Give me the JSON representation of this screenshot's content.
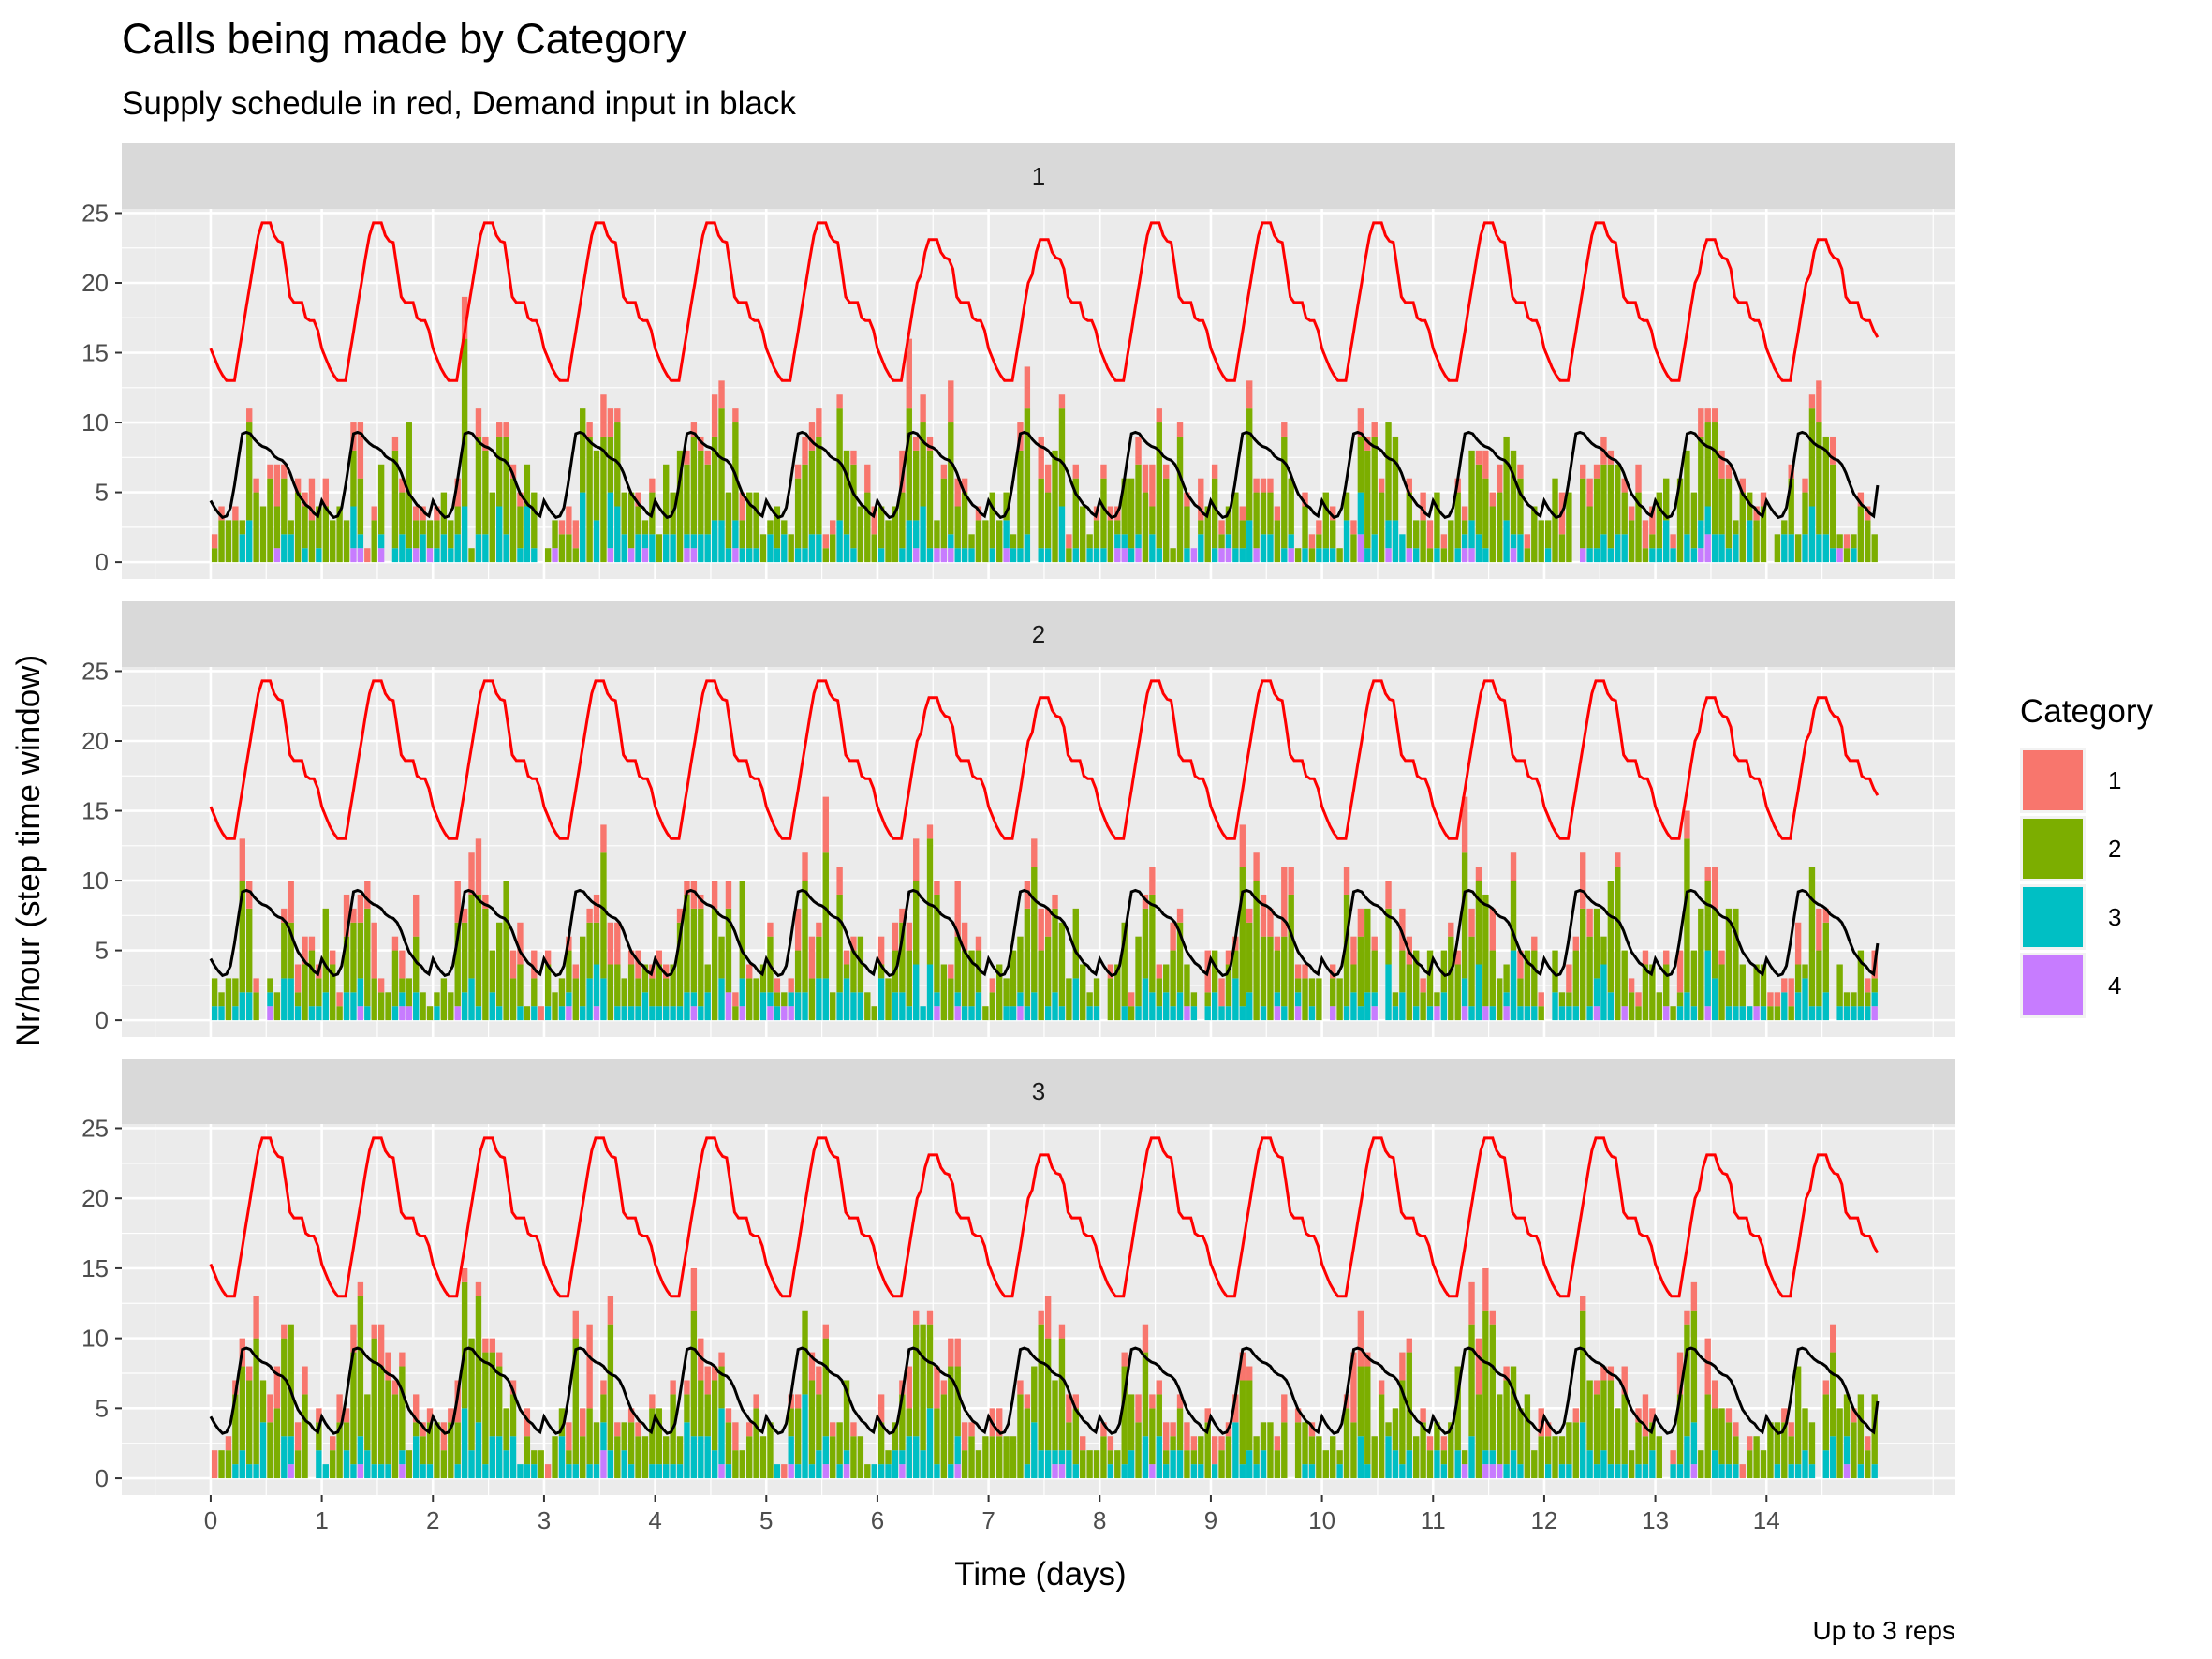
{
  "chart_data": {
    "type": "bar",
    "title": "Calls being made by Category",
    "subtitle": "Supply schedule in red, Demand input in black",
    "xlabel": "Time (days)",
    "ylabel": "Nr/hour (step time window)",
    "caption": "Up to 3 reps",
    "xlim": [
      -0.8,
      15.7
    ],
    "ylim": [
      -1.2,
      25.3
    ],
    "xticks": [
      0,
      1,
      2,
      3,
      4,
      5,
      6,
      7,
      8,
      9,
      10,
      11,
      12,
      13,
      14
    ],
    "yticks": [
      0,
      5,
      10,
      15,
      20,
      25
    ],
    "grid": true,
    "stacked": true,
    "legend": {
      "title": "Category",
      "position": "right",
      "entries": [
        {
          "label": "1",
          "color": "#F8766D"
        },
        {
          "label": "2",
          "color": "#7CAE00"
        },
        {
          "label": "3",
          "color": "#00BFC4"
        },
        {
          "label": "4",
          "color": "#C77CFF"
        }
      ]
    },
    "facets": [
      {
        "label": "1",
        "seed": 11
      },
      {
        "label": "2",
        "seed": 23
      },
      {
        "label": "3",
        "seed": 37
      }
    ],
    "bar_step_days": 0.0625,
    "supply_line": {
      "color": "#FF0000",
      "profile": [
        15.3,
        14.6,
        13.9,
        13.4,
        13.0,
        13.0,
        13.0,
        14.8,
        16.5,
        18.3,
        20.0,
        21.8,
        23.4,
        24.3,
        24.3,
        24.3,
        23.4,
        23.0,
        22.9,
        21.0,
        19.0,
        18.6,
        18.6,
        18.6,
        17.5,
        17.3,
        17.3,
        16.6
      ],
      "peaks": [
        24.3,
        24.3,
        24.3,
        24.3,
        24.3,
        24.3,
        23.1,
        23.1,
        24.3,
        24.3,
        24.3,
        24.3,
        24.3,
        23.1,
        23.1
      ],
      "end_value": 16.1
    },
    "demand_line": {
      "color": "#000000",
      "profile": [
        4.4,
        3.9,
        3.5,
        3.2,
        3.3,
        3.9,
        5.5,
        7.4,
        9.2,
        9.3,
        9.2,
        8.8,
        8.5,
        8.3,
        8.2,
        8.0,
        7.6,
        7.4,
        7.3,
        7.0,
        6.4,
        5.6,
        4.9,
        4.5,
        4.1,
        3.9,
        3.5,
        3.3
      ],
      "end_value": 5.5
    },
    "bar_model": {
      "shares": [
        0.16,
        0.64,
        0.18,
        0.02
      ],
      "noise": 0.45
    }
  }
}
